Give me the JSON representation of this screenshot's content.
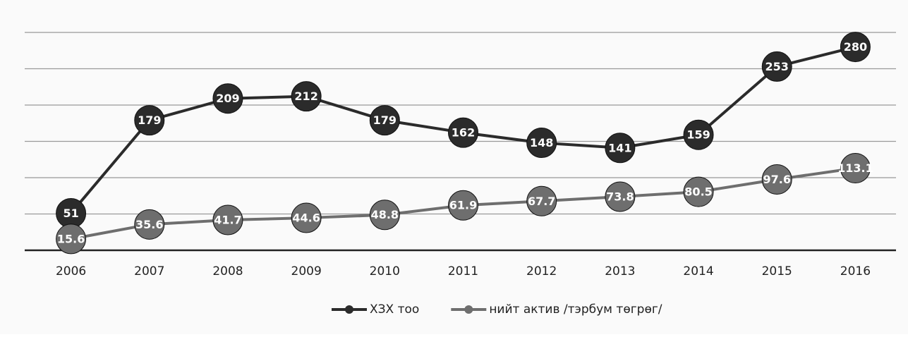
{
  "chart_data": {
    "type": "line",
    "categories": [
      "2006",
      "2007",
      "2008",
      "2009",
      "2010",
      "2011",
      "2012",
      "2013",
      "2014",
      "2015",
      "2016"
    ],
    "series": [
      {
        "name": "ХЗХ тоо",
        "color": "#2b2b2b",
        "values": [
          51,
          179,
          209,
          212,
          179,
          162,
          148,
          141,
          159,
          253,
          280
        ]
      },
      {
        "name": "нийт актив /тэрбум төгрөг/",
        "color": "#6e6e6e",
        "values": [
          15.6,
          35.6,
          41.7,
          44.6,
          48.8,
          61.9,
          67.7,
          73.8,
          80.5,
          97.6,
          113.1
        ]
      }
    ],
    "ylim": [
      0,
      300
    ],
    "yticks": [
      0,
      50,
      100,
      150,
      200,
      250,
      300
    ],
    "grid": true,
    "legend": "bottom"
  }
}
